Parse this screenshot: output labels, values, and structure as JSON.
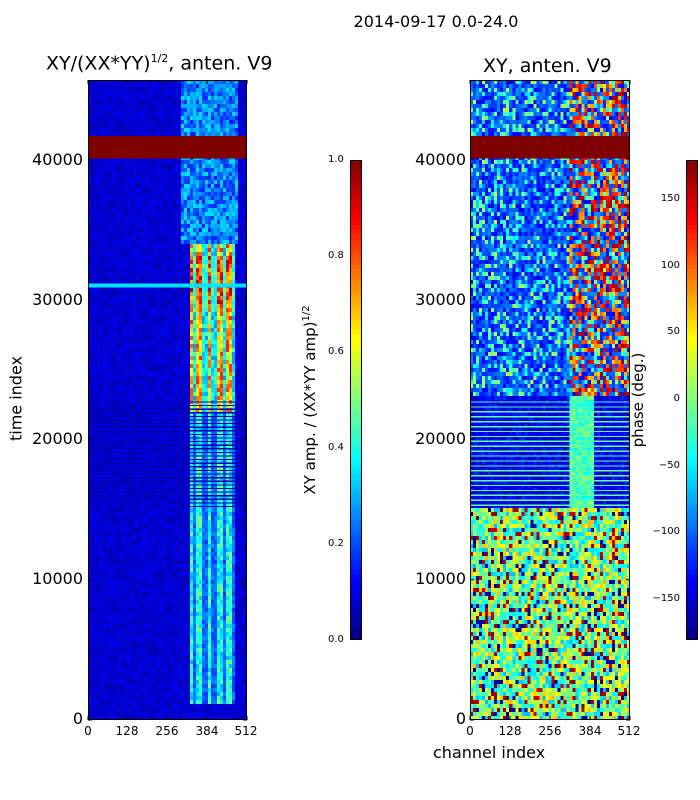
{
  "suptitle": "2014-09-17 0.0-24.0",
  "ylabel": "time index",
  "xlabel": "channel index",
  "chart_data": [
    {
      "type": "heatmap",
      "title_main": "XY/(XX*YY)",
      "title_sup": "1/2",
      "title_rest": ", anten. V9",
      "xlabel": "",
      "ylabel": "time index",
      "x_ticks": [
        "0",
        "128",
        "256",
        "384",
        "512"
      ],
      "y_ticks": [
        "0",
        "10000",
        "20000",
        "30000",
        "40000"
      ],
      "xlim": [
        0,
        512
      ],
      "ylim": [
        0,
        45600
      ],
      "colorbar": {
        "label_main": "XY amp. / (XX*YY amp)",
        "label_sup": "1/2",
        "ticks": [
          "0.0",
          "0.2",
          "0.4",
          "0.6",
          "0.8",
          "1.0"
        ],
        "range": [
          0,
          1
        ],
        "colormap": "jet"
      },
      "bands": [
        {
          "t0": 40000,
          "t1": 41600,
          "value": 1.0,
          "note": "saturated band"
        },
        {
          "t0": 30800,
          "t1": 31100,
          "value": 0.35
        },
        {
          "t0": 15000,
          "t1": 22700,
          "value": 0.12,
          "note": "striped region"
        }
      ],
      "hot_columns": [
        {
          "c0": 330,
          "c1": 470,
          "t0": 1000,
          "t1": 34000,
          "peak": 0.85
        }
      ]
    },
    {
      "type": "heatmap",
      "title_main": "XY, anten. V9",
      "xlabel": "channel index",
      "x_ticks": [
        "0",
        "128",
        "256",
        "384",
        "512"
      ],
      "y_ticks": [
        "0",
        "10000",
        "20000",
        "30000",
        "40000"
      ],
      "xlim": [
        0,
        512
      ],
      "ylim": [
        0,
        45600
      ],
      "colorbar": {
        "label": "phase (deg.)",
        "ticks": [
          "150",
          "100",
          "50",
          "0",
          "−50",
          "−100",
          "−150"
        ],
        "tick_values": [
          150,
          100,
          50,
          0,
          -50,
          -100,
          -150
        ],
        "range": [
          -180,
          180
        ],
        "colormap": "jet"
      },
      "bands": [
        {
          "t0": 40000,
          "t1": 41600,
          "value": 180,
          "note": "saturated band"
        },
        {
          "t0": 15000,
          "t1": 22700,
          "value": -130,
          "note": "striped region"
        }
      ]
    }
  ],
  "colors": {
    "jet_dark_red": "#7f0000",
    "jet_dark_blue": "#00007f",
    "bright_green": "#7fff7f"
  }
}
